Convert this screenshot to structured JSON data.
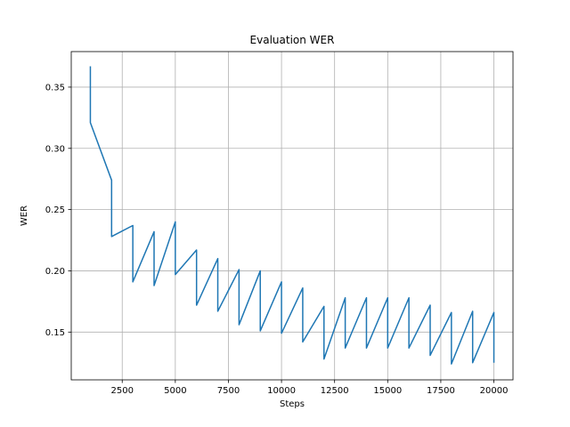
{
  "chart_data": {
    "type": "line",
    "title": "Evaluation WER",
    "xlabel": "Steps",
    "ylabel": "WER",
    "xlim": [
      100,
      20900
    ],
    "ylim": [
      0.111,
      0.379
    ],
    "xticks": [
      2500,
      5000,
      7500,
      10000,
      12500,
      15000,
      17500,
      20000
    ],
    "xtick_labels": [
      "2500",
      "5000",
      "7500",
      "10000",
      "12500",
      "15000",
      "17500",
      "20000"
    ],
    "yticks": [
      0.15,
      0.2,
      0.25,
      0.3,
      0.35
    ],
    "ytick_labels": [
      "0.15",
      "0.20",
      "0.25",
      "0.30",
      "0.35"
    ],
    "grid": true,
    "series": [
      {
        "color": "#1f77b4",
        "x": [
          1000,
          1000,
          2000,
          2000,
          3000,
          3000,
          4000,
          4000,
          5000,
          5000,
          6000,
          6000,
          7000,
          7000,
          8000,
          8000,
          9000,
          9000,
          10000,
          10000,
          11000,
          11000,
          12000,
          12000,
          13000,
          13000,
          14000,
          14000,
          15000,
          15000,
          16000,
          16000,
          17000,
          17000,
          18000,
          18000,
          19000,
          19000,
          20000,
          20000
        ],
        "y": [
          0.367,
          0.321,
          0.274,
          0.228,
          0.237,
          0.191,
          0.232,
          0.188,
          0.24,
          0.197,
          0.217,
          0.172,
          0.21,
          0.167,
          0.201,
          0.156,
          0.2,
          0.151,
          0.191,
          0.149,
          0.186,
          0.142,
          0.171,
          0.128,
          0.178,
          0.137,
          0.178,
          0.137,
          0.178,
          0.137,
          0.178,
          0.137,
          0.172,
          0.131,
          0.166,
          0.124,
          0.167,
          0.125,
          0.166,
          0.125
        ]
      }
    ]
  }
}
